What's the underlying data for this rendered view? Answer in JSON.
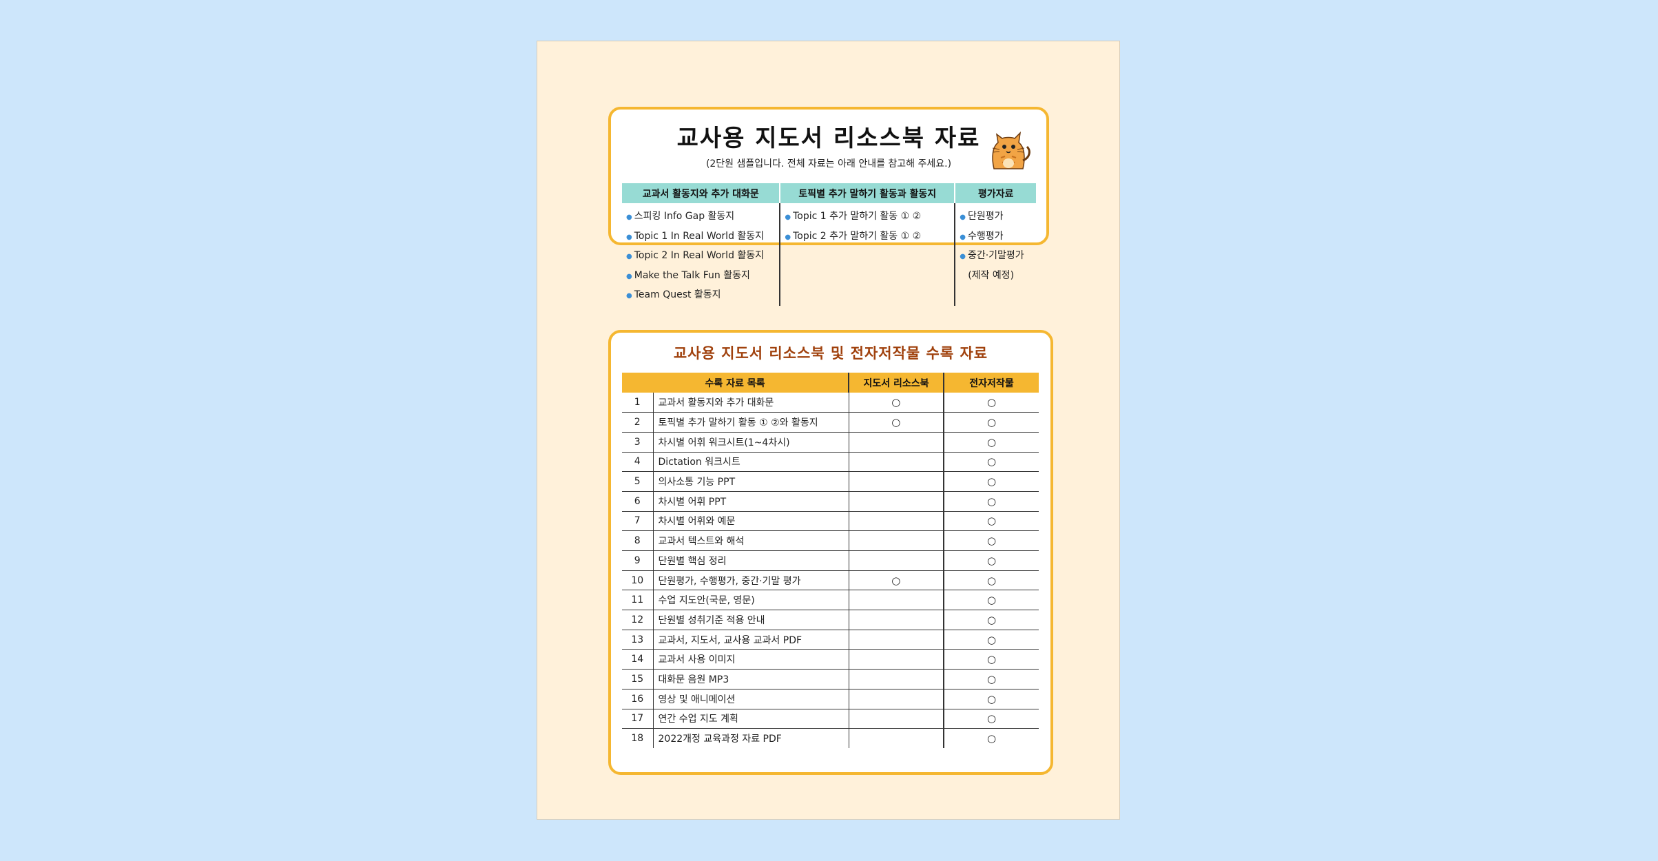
{
  "card1": {
    "title": "교사용 지도서 리소스북 자료",
    "subtitle": "(2단원 샘플입니다. 전체 자료는 아래 안내를 참고해 주세요.)",
    "columns": [
      {
        "header": "교과서 활동지와 추가 대화문",
        "items": [
          "스피킹 Info Gap 활동지",
          "Topic 1 In Real World 활동지",
          "Topic 2 In Real World 활동지",
          "Make the Talk Fun 활동지",
          "Team Quest 활동지"
        ]
      },
      {
        "header": "토픽별 추가 말하기 활동과 활동지",
        "items": [
          "Topic 1 추가 말하기 활동 ① ②",
          "Topic 2 추가 말하기 활동 ① ②"
        ]
      },
      {
        "header": "평가자료",
        "items": [
          "단원평가",
          "수행평가",
          "중간·기말평가"
        ],
        "note": "(제작 예정)"
      }
    ]
  },
  "card2": {
    "title": "교사용 지도서 리소스북 및 전자저작물 수록 자료",
    "headers": [
      "수록 자료 목록",
      "지도서 리소스북",
      "전자저작물"
    ],
    "rows": [
      {
        "no": "1",
        "name": "교과서 활동지와 추가 대화문",
        "book": "○",
        "digital": "○"
      },
      {
        "no": "2",
        "name": "토픽별 추가 말하기 활동 ① ②와 활동지",
        "book": "○",
        "digital": "○"
      },
      {
        "no": "3",
        "name": "차시별 어휘 워크시트(1~4차시)",
        "book": "",
        "digital": "○"
      },
      {
        "no": "4",
        "name": "Dictation 워크시트",
        "book": "",
        "digital": "○"
      },
      {
        "no": "5",
        "name": "의사소통 기능 PPT",
        "book": "",
        "digital": "○"
      },
      {
        "no": "6",
        "name": "차시별 어휘 PPT",
        "book": "",
        "digital": "○"
      },
      {
        "no": "7",
        "name": "차시별 어휘와 예문",
        "book": "",
        "digital": "○"
      },
      {
        "no": "8",
        "name": "교과서 텍스트와 해석",
        "book": "",
        "digital": "○"
      },
      {
        "no": "9",
        "name": "단원별 핵심 정리",
        "book": "",
        "digital": "○"
      },
      {
        "no": "10",
        "name": "단원평가, 수행평가, 중간·기말 평가",
        "book": "○",
        "digital": "○"
      },
      {
        "no": "11",
        "name": "수업 지도안(국문, 영문)",
        "book": "",
        "digital": "○"
      },
      {
        "no": "12",
        "name": "단원별 성취기준 적용 안내",
        "book": "",
        "digital": "○"
      },
      {
        "no": "13",
        "name": "교과서, 지도서, 교사용 교과서 PDF",
        "book": "",
        "digital": "○"
      },
      {
        "no": "14",
        "name": "교과서 사용 이미지",
        "book": "",
        "digital": "○"
      },
      {
        "no": "15",
        "name": "대화문 음원 MP3",
        "book": "",
        "digital": "○"
      },
      {
        "no": "16",
        "name": "영상 및 애니메이션",
        "book": "",
        "digital": "○"
      },
      {
        "no": "17",
        "name": "연간 수업 지도 계획",
        "book": "",
        "digital": "○"
      },
      {
        "no": "18",
        "name": "2022개정 교육과정 자료 PDF",
        "book": "",
        "digital": "○"
      }
    ]
  },
  "icons": {
    "mascot": "cat-mascot-icon",
    "bullet": "bullet-dot-icon"
  },
  "colors": {
    "background": "#cde6fb",
    "page": "#fff1da",
    "card_border": "#f5b731",
    "teal_header": "#97dbd4",
    "orange_header": "#f5b731",
    "title2": "#a0410d"
  }
}
